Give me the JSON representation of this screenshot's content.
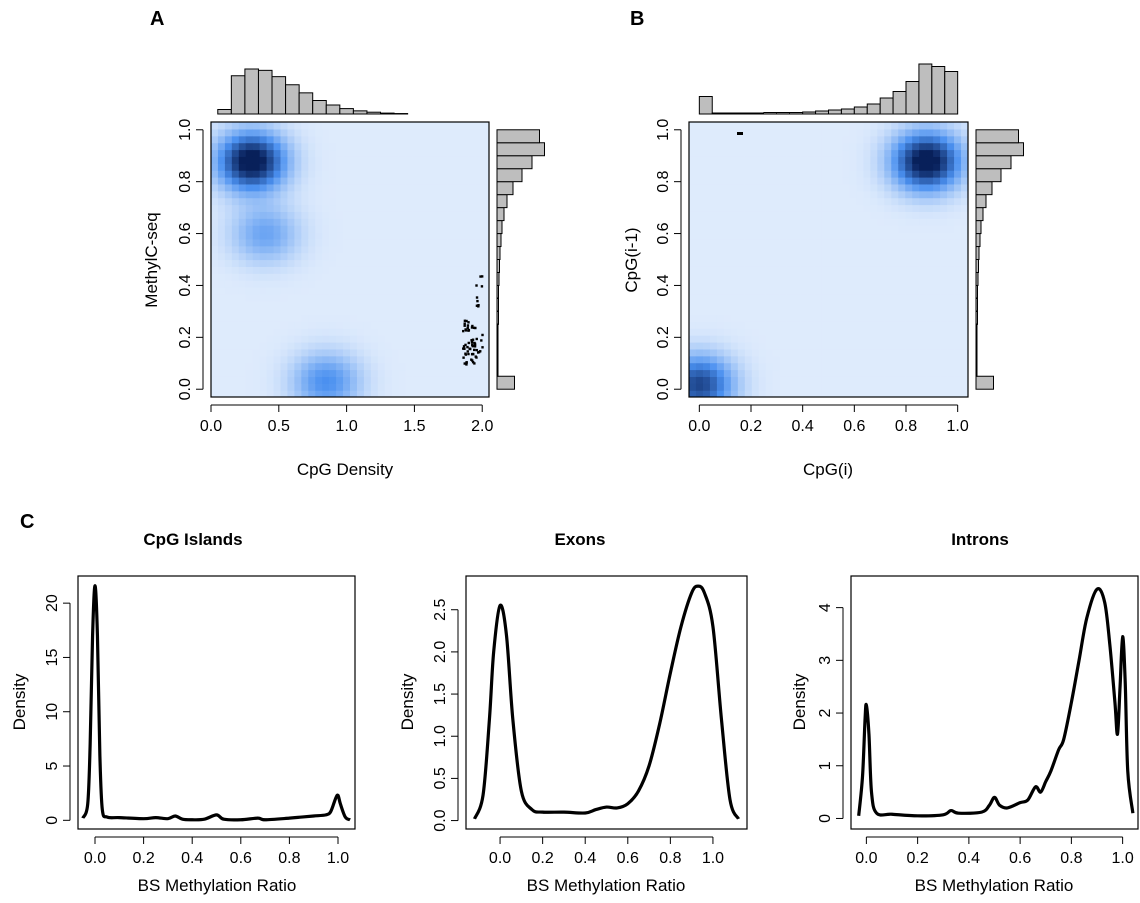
{
  "panel_labels": {
    "a": "A",
    "b": "B",
    "c": "C"
  },
  "colors": {
    "density_low": "#ffffff",
    "density_mid": "#4a90f0",
    "density_high": "#08205a",
    "hist_fill": "#bebebe",
    "line": "#000000"
  },
  "chart_data": [
    {
      "id": "A",
      "type": "heatmap",
      "title": "",
      "xlabel": "CpG Density",
      "ylabel": "MethylC-seq",
      "xlim": [
        0,
        2.05
      ],
      "ylim": [
        -0.03,
        1.03
      ],
      "xticks": [
        "0.0",
        "0.5",
        "1.0",
        "1.5",
        "2.0"
      ],
      "yticks": [
        "0.0",
        "0.2",
        "0.4",
        "0.6",
        "0.8",
        "1.0"
      ],
      "density_peaks": [
        {
          "x": 0.3,
          "y": 0.88,
          "strength": 1.0
        },
        {
          "x": 0.85,
          "y": 0.03,
          "strength": 0.45
        },
        {
          "x": 0.4,
          "y": 0.6,
          "strength": 0.35
        }
      ],
      "outlier_points_x_range": [
        1.85,
        2.0
      ],
      "outlier_points_y_range": [
        0.1,
        0.45
      ],
      "x_marginal_hist": {
        "bin_starts": [
          0.05,
          0.15,
          0.25,
          0.35,
          0.45,
          0.55,
          0.65,
          0.75,
          0.85,
          0.95,
          1.05,
          1.15,
          1.25,
          1.35
        ],
        "values": [
          0.1,
          0.85,
          1.0,
          0.97,
          0.83,
          0.65,
          0.47,
          0.3,
          0.2,
          0.12,
          0.07,
          0.04,
          0.02,
          0.01
        ]
      },
      "y_marginal_hist": {
        "bin_starts": [
          0.0,
          0.05,
          0.1,
          0.15,
          0.2,
          0.25,
          0.3,
          0.35,
          0.4,
          0.45,
          0.5,
          0.55,
          0.6,
          0.65,
          0.7,
          0.75,
          0.8,
          0.85,
          0.9,
          0.95
        ],
        "values": [
          0.35,
          0.02,
          0.02,
          0.02,
          0.02,
          0.03,
          0.03,
          0.03,
          0.04,
          0.05,
          0.06,
          0.08,
          0.1,
          0.14,
          0.2,
          0.32,
          0.5,
          0.7,
          0.95,
          0.85
        ]
      }
    },
    {
      "id": "B",
      "type": "heatmap",
      "title": "",
      "xlabel": "CpG(i)",
      "ylabel": "CpG(i-1)",
      "xlim": [
        -0.04,
        1.04
      ],
      "ylim": [
        -0.03,
        1.03
      ],
      "xticks": [
        "0.0",
        "0.2",
        "0.4",
        "0.6",
        "0.8",
        "1.0"
      ],
      "yticks": [
        "0.0",
        "0.2",
        "0.4",
        "0.6",
        "0.8",
        "1.0"
      ],
      "density_peaks": [
        {
          "x": 0.88,
          "y": 0.88,
          "strength": 1.0
        },
        {
          "x": 0.0,
          "y": 0.02,
          "strength": 0.75
        }
      ],
      "x_marginal_hist": {
        "bin_starts": [
          0.0,
          0.05,
          0.1,
          0.15,
          0.2,
          0.25,
          0.3,
          0.35,
          0.4,
          0.45,
          0.5,
          0.55,
          0.6,
          0.65,
          0.7,
          0.75,
          0.8,
          0.85,
          0.9,
          0.95
        ],
        "values": [
          0.35,
          0.02,
          0.02,
          0.02,
          0.02,
          0.03,
          0.03,
          0.03,
          0.04,
          0.06,
          0.08,
          0.1,
          0.14,
          0.2,
          0.32,
          0.45,
          0.65,
          1.0,
          0.95,
          0.85
        ]
      },
      "y_marginal_hist": {
        "bin_starts": [
          0.0,
          0.05,
          0.1,
          0.15,
          0.2,
          0.25,
          0.3,
          0.35,
          0.4,
          0.45,
          0.5,
          0.55,
          0.6,
          0.65,
          0.7,
          0.75,
          0.8,
          0.85,
          0.9,
          0.95
        ],
        "values": [
          0.35,
          0.02,
          0.02,
          0.02,
          0.02,
          0.03,
          0.03,
          0.03,
          0.04,
          0.05,
          0.06,
          0.08,
          0.1,
          0.14,
          0.2,
          0.32,
          0.5,
          0.7,
          0.95,
          0.85
        ]
      }
    },
    {
      "id": "C1",
      "type": "line",
      "title": "CpG Islands",
      "xlabel": "BS Methylation Ratio",
      "ylabel": "Density",
      "xlim": [
        -0.07,
        1.07
      ],
      "ylim": [
        -0.8,
        22.5
      ],
      "xticks": [
        "0.0",
        "0.2",
        "0.4",
        "0.6",
        "0.8",
        "1.0"
      ],
      "yticks": [
        "0",
        "5",
        "10",
        "15",
        "20"
      ],
      "x": [
        -0.05,
        -0.03,
        -0.02,
        -0.01,
        0.0,
        0.01,
        0.02,
        0.03,
        0.05,
        0.1,
        0.2,
        0.25,
        0.3,
        0.33,
        0.36,
        0.4,
        0.45,
        0.5,
        0.53,
        0.6,
        0.67,
        0.7,
        0.8,
        0.85,
        0.9,
        0.95,
        0.97,
        0.99,
        1.0,
        1.01,
        1.03,
        1.05
      ],
      "y": [
        0.2,
        1.5,
        7.0,
        17.0,
        21.6,
        17.0,
        6.0,
        1.0,
        0.3,
        0.25,
        0.15,
        0.25,
        0.15,
        0.4,
        0.1,
        0.05,
        0.1,
        0.5,
        0.1,
        0.05,
        0.2,
        0.05,
        0.2,
        0.3,
        0.4,
        0.5,
        0.8,
        2.0,
        2.3,
        1.5,
        0.3,
        0.05
      ]
    },
    {
      "id": "C2",
      "type": "line",
      "title": "Exons",
      "xlabel": "BS Methylation Ratio",
      "ylabel": "Density",
      "xlim": [
        -0.16,
        1.16
      ],
      "ylim": [
        -0.1,
        2.9
      ],
      "xticks": [
        "0.0",
        "0.2",
        "0.4",
        "0.6",
        "0.8",
        "1.0"
      ],
      "yticks": [
        "0.0",
        "0.5",
        "1.0",
        "1.5",
        "2.0",
        "2.5"
      ],
      "x": [
        -0.12,
        -0.08,
        -0.05,
        -0.03,
        0.0,
        0.03,
        0.06,
        0.1,
        0.15,
        0.2,
        0.3,
        0.4,
        0.45,
        0.5,
        0.55,
        0.6,
        0.65,
        0.7,
        0.75,
        0.8,
        0.85,
        0.9,
        0.93,
        0.96,
        1.0,
        1.04,
        1.08,
        1.12
      ],
      "y": [
        0.02,
        0.3,
        1.2,
        2.0,
        2.55,
        2.2,
        1.2,
        0.35,
        0.13,
        0.1,
        0.1,
        0.09,
        0.13,
        0.16,
        0.15,
        0.2,
        0.35,
        0.65,
        1.15,
        1.75,
        2.3,
        2.7,
        2.78,
        2.7,
        2.3,
        1.2,
        0.25,
        0.02
      ]
    },
    {
      "id": "C3",
      "type": "line",
      "title": "Introns",
      "xlabel": "BS Methylation Ratio",
      "ylabel": "Density",
      "xlim": [
        -0.06,
        1.06
      ],
      "ylim": [
        -0.2,
        4.6
      ],
      "xticks": [
        "0.0",
        "0.2",
        "0.4",
        "0.6",
        "0.8",
        "1.0"
      ],
      "yticks": [
        "0",
        "1",
        "2",
        "3",
        "4"
      ],
      "x": [
        -0.03,
        -0.015,
        -0.005,
        0.0,
        0.01,
        0.02,
        0.04,
        0.1,
        0.2,
        0.3,
        0.33,
        0.36,
        0.45,
        0.48,
        0.5,
        0.52,
        0.55,
        0.6,
        0.63,
        0.66,
        0.68,
        0.7,
        0.72,
        0.75,
        0.77,
        0.8,
        0.83,
        0.86,
        0.9,
        0.93,
        0.95,
        0.97,
        0.98,
        0.99,
        1.0,
        1.01,
        1.02,
        1.04
      ],
      "y": [
        0.05,
        0.8,
        1.9,
        2.15,
        1.6,
        0.5,
        0.1,
        0.08,
        0.05,
        0.07,
        0.15,
        0.1,
        0.12,
        0.25,
        0.4,
        0.25,
        0.2,
        0.3,
        0.35,
        0.6,
        0.5,
        0.7,
        0.9,
        1.3,
        1.5,
        2.2,
        3.0,
        3.8,
        4.35,
        4.1,
        3.3,
        2.2,
        1.6,
        2.5,
        3.45,
        2.6,
        0.9,
        0.1
      ]
    }
  ]
}
